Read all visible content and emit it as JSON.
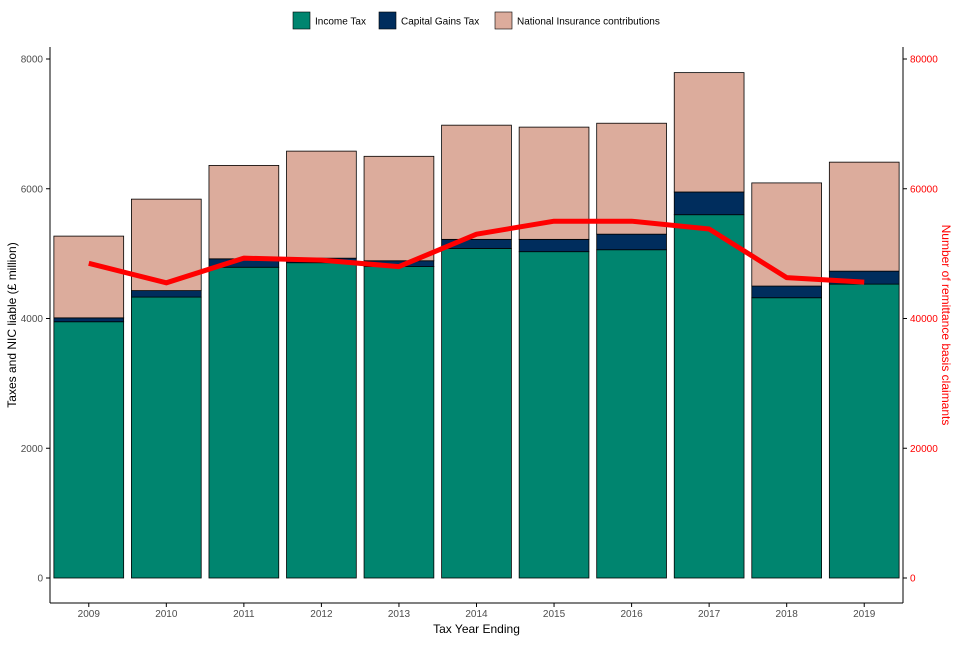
{
  "chart_data": {
    "type": "bar",
    "stacked": true,
    "categories": [
      "2009",
      "2010",
      "2011",
      "2012",
      "2013",
      "2014",
      "2015",
      "2016",
      "2017",
      "2018",
      "2019"
    ],
    "series": [
      {
        "name": "Income Tax",
        "color": "#00856f",
        "values": [
          3950,
          4330,
          4790,
          4860,
          4800,
          5080,
          5030,
          5060,
          5600,
          4320,
          4530
        ]
      },
      {
        "name": "Capital Gains Tax",
        "color": "#002d5d",
        "values": [
          60,
          100,
          130,
          70,
          90,
          140,
          190,
          240,
          350,
          180,
          200
        ]
      },
      {
        "name": "National Insurance contributions",
        "color": "#dcac9c",
        "values": [
          1260,
          1410,
          1440,
          1650,
          1610,
          1760,
          1730,
          1710,
          1840,
          1590,
          1680
        ]
      }
    ],
    "line": {
      "axis": "right",
      "color": "#ff0000",
      "values": [
        48500,
        45500,
        49300,
        49000,
        48000,
        53000,
        55000,
        55000,
        53800,
        46300,
        45600
      ]
    },
    "xlabel": "Tax Year Ending",
    "ylabel": "Taxes and NIC liable (£ million)",
    "ylabel_right": "Number of remittance basis claimants",
    "ylim": [
      0,
      8000
    ],
    "ylim_right": [
      0,
      80000
    ],
    "yticks": [
      0,
      2000,
      4000,
      6000,
      8000
    ],
    "yticks_right": [
      0,
      20000,
      40000,
      60000,
      80000
    ],
    "legend_position": "top",
    "grid": false
  }
}
